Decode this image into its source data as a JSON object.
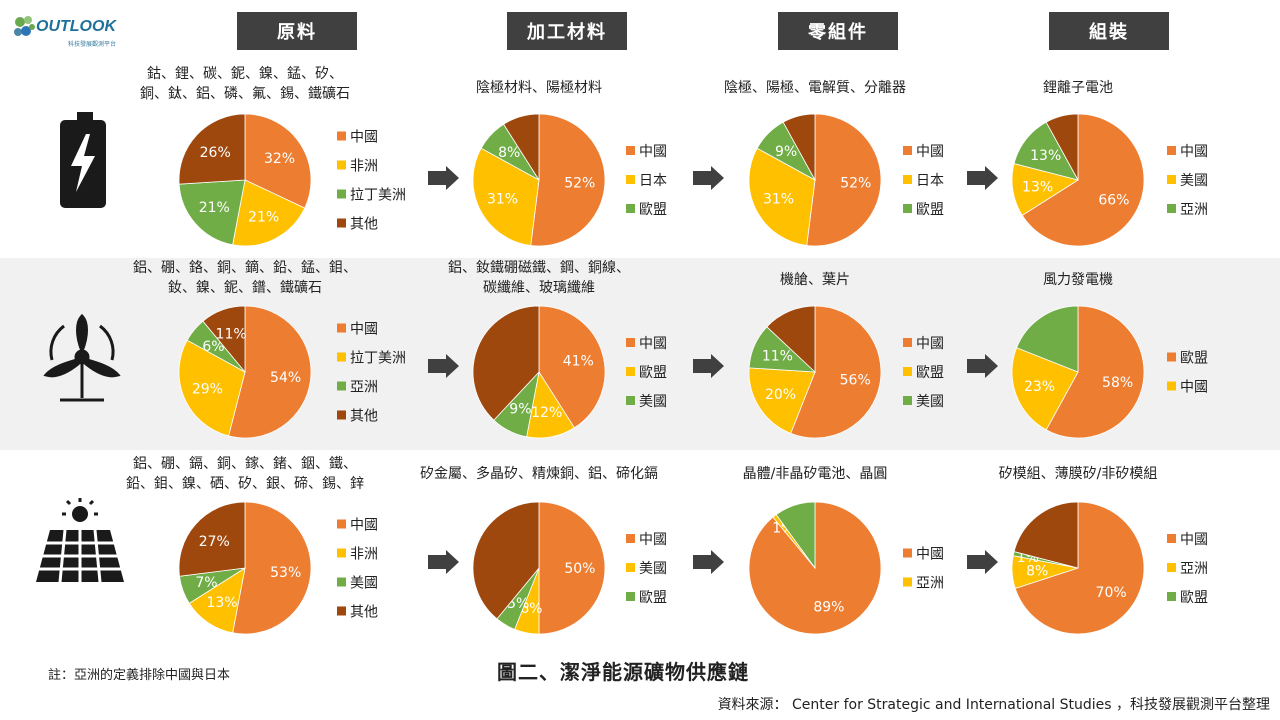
{
  "header": {
    "logo_text": "OUTLOOK",
    "logo_sub": "科技發展觀測平台",
    "stages": [
      "原料",
      "加工材料",
      "零組件",
      "組裝"
    ]
  },
  "colors": {
    "orange": "#ed7d31",
    "yellow": "#ffc000",
    "green": "#70ad47",
    "brown": "#9e480e",
    "header_bg": "#404040",
    "arrow": "#404040"
  },
  "icons": [
    "battery-icon",
    "wind-turbine-icon",
    "solar-panel-icon"
  ],
  "chart_data": [
    {
      "type": "pie",
      "row": 0,
      "col": 0,
      "caption": [
        "鈷、鋰、碳、鈮、鎳、錳、矽、",
        "銅、鈦、鋁、磷、氟、錫、鐵礦石"
      ],
      "slices": [
        {
          "name": "中國",
          "value": 32,
          "color": "#ed7d31",
          "label": "32%"
        },
        {
          "name": "非洲",
          "value": 21,
          "color": "#ffc000",
          "label": "21%"
        },
        {
          "name": "拉丁美洲",
          "value": 21,
          "color": "#70ad47",
          "label": "21%"
        },
        {
          "name": "其他",
          "value": 26,
          "color": "#9e480e",
          "label": "26%"
        }
      ],
      "legend": [
        "中國",
        "非洲",
        "拉丁美洲",
        "其他"
      ]
    },
    {
      "type": "pie",
      "row": 0,
      "col": 1,
      "caption": [
        "陰極材料、陽極材料"
      ],
      "slices": [
        {
          "name": "中國",
          "value": 52,
          "color": "#ed7d31",
          "label": "52%"
        },
        {
          "name": "日本",
          "value": 31,
          "color": "#ffc000",
          "label": "31%"
        },
        {
          "name": "歐盟",
          "value": 8,
          "color": "#70ad47",
          "label": "8%"
        },
        {
          "name": "",
          "value": 9,
          "color": "#9e480e",
          "label": ""
        }
      ],
      "legend": [
        "中國",
        "日本",
        "歐盟"
      ]
    },
    {
      "type": "pie",
      "row": 0,
      "col": 2,
      "caption": [
        "陰極、陽極、電解質、分離器"
      ],
      "slices": [
        {
          "name": "中國",
          "value": 52,
          "color": "#ed7d31",
          "label": "52%"
        },
        {
          "name": "日本",
          "value": 31,
          "color": "#ffc000",
          "label": "31%"
        },
        {
          "name": "歐盟",
          "value": 9,
          "color": "#70ad47",
          "label": "9%"
        },
        {
          "name": "",
          "value": 8,
          "color": "#9e480e",
          "label": ""
        }
      ],
      "legend": [
        "中國",
        "日本",
        "歐盟"
      ]
    },
    {
      "type": "pie",
      "row": 0,
      "col": 3,
      "caption": [
        "鋰離子電池"
      ],
      "slices": [
        {
          "name": "中國",
          "value": 66,
          "color": "#ed7d31",
          "label": "66%"
        },
        {
          "name": "美國",
          "value": 13,
          "color": "#ffc000",
          "label": "13%"
        },
        {
          "name": "亞洲",
          "value": 13,
          "color": "#70ad47",
          "label": "13%"
        },
        {
          "name": "",
          "value": 8,
          "color": "#9e480e",
          "label": ""
        }
      ],
      "legend": [
        "中國",
        "美國",
        "亞洲"
      ]
    },
    {
      "type": "pie",
      "row": 1,
      "col": 0,
      "caption": [
        "鋁、硼、鉻、銅、鏑、鉛、錳、鉬、",
        "釹、鎳、鈮、鐠、鐵礦石"
      ],
      "slices": [
        {
          "name": "中國",
          "value": 54,
          "color": "#ed7d31",
          "label": "54%"
        },
        {
          "name": "拉丁美洲",
          "value": 29,
          "color": "#ffc000",
          "label": "29%"
        },
        {
          "name": "亞洲",
          "value": 6,
          "color": "#70ad47",
          "label": "6%"
        },
        {
          "name": "其他",
          "value": 11,
          "color": "#9e480e",
          "label": "11%"
        }
      ],
      "legend": [
        "中國",
        "拉丁美洲",
        "亞洲",
        "其他"
      ]
    },
    {
      "type": "pie",
      "row": 1,
      "col": 1,
      "caption": [
        "鋁、釹鐵硼磁鐵、鋼、銅線、",
        "碳纖維、玻璃纖維"
      ],
      "slices": [
        {
          "name": "中國",
          "value": 41,
          "color": "#ed7d31",
          "label": "41%"
        },
        {
          "name": "歐盟",
          "value": 12,
          "color": "#ffc000",
          "label": "12%"
        },
        {
          "name": "美國",
          "value": 9,
          "color": "#70ad47",
          "label": "9%"
        },
        {
          "name": "",
          "value": 38,
          "color": "#9e480e",
          "label": ""
        }
      ],
      "legend": [
        "中國",
        "歐盟",
        "美國"
      ]
    },
    {
      "type": "pie",
      "row": 1,
      "col": 2,
      "caption": [
        "機艙、葉片"
      ],
      "slices": [
        {
          "name": "中國",
          "value": 56,
          "color": "#ed7d31",
          "label": "56%"
        },
        {
          "name": "歐盟",
          "value": 20,
          "color": "#ffc000",
          "label": "20%"
        },
        {
          "name": "美國",
          "value": 11,
          "color": "#70ad47",
          "label": "11%"
        },
        {
          "name": "",
          "value": 13,
          "color": "#9e480e",
          "label": ""
        }
      ],
      "legend": [
        "中國",
        "歐盟",
        "美國"
      ]
    },
    {
      "type": "pie",
      "row": 1,
      "col": 3,
      "caption": [
        "風力發電機"
      ],
      "slices": [
        {
          "name": "歐盟",
          "value": 58,
          "color": "#ed7d31",
          "label": "58%"
        },
        {
          "name": "中國",
          "value": 23,
          "color": "#ffc000",
          "label": "23%"
        },
        {
          "name": "",
          "value": 19,
          "color": "#70ad47",
          "label": ""
        }
      ],
      "legend": [
        "歐盟",
        "中國"
      ]
    },
    {
      "type": "pie",
      "row": 2,
      "col": 0,
      "caption": [
        "鋁、硼、鎘、銅、鎵、鍺、銦、鐵、",
        "鉛、鉬、鎳、硒、矽、銀、碲、錫、鋅"
      ],
      "slices": [
        {
          "name": "中國",
          "value": 53,
          "color": "#ed7d31",
          "label": "53%"
        },
        {
          "name": "非洲",
          "value": 13,
          "color": "#ffc000",
          "label": "13%"
        },
        {
          "name": "美國",
          "value": 7,
          "color": "#70ad47",
          "label": "7%"
        },
        {
          "name": "其他",
          "value": 27,
          "color": "#9e480e",
          "label": "27%"
        }
      ],
      "legend": [
        "中國",
        "非洲",
        "美國",
        "其他"
      ]
    },
    {
      "type": "pie",
      "row": 2,
      "col": 1,
      "caption": [
        "矽金屬、多晶矽、精煉銅、鋁、碲化鎘"
      ],
      "slices": [
        {
          "name": "中國",
          "value": 50,
          "color": "#ed7d31",
          "label": "50%"
        },
        {
          "name": "美國",
          "value": 6,
          "color": "#ffc000",
          "label": "6%"
        },
        {
          "name": "歐盟",
          "value": 5,
          "color": "#70ad47",
          "label": "5%"
        },
        {
          "name": "",
          "value": 39,
          "color": "#9e480e",
          "label": ""
        }
      ],
      "legend": [
        "中國",
        "美國",
        "歐盟"
      ]
    },
    {
      "type": "pie",
      "row": 2,
      "col": 2,
      "caption": [
        "晶體/非晶矽電池、晶圓"
      ],
      "slices": [
        {
          "name": "中國",
          "value": 89,
          "color": "#ed7d31",
          "label": "89%"
        },
        {
          "name": "亞洲",
          "value": 1,
          "color": "#ffc000",
          "label": "1%"
        },
        {
          "name": "",
          "value": 10,
          "color": "#70ad47",
          "label": ""
        }
      ],
      "legend": [
        "中國",
        "亞洲"
      ]
    },
    {
      "type": "pie",
      "row": 2,
      "col": 3,
      "caption": [
        "矽模組、薄膜矽/非矽模組"
      ],
      "slices": [
        {
          "name": "中國",
          "value": 70,
          "color": "#ed7d31",
          "label": "70%"
        },
        {
          "name": "亞洲",
          "value": 8,
          "color": "#ffc000",
          "label": "8%"
        },
        {
          "name": "歐盟",
          "value": 1,
          "color": "#70ad47",
          "label": "1%"
        },
        {
          "name": "",
          "value": 21,
          "color": "#9e480e",
          "label": ""
        }
      ],
      "legend": [
        "中國",
        "亞洲",
        "歐盟"
      ]
    }
  ],
  "footer": {
    "note": "註：亞洲的定義排除中國與日本",
    "title": "圖二、潔淨能源礦物供應鏈",
    "source": "資料來源： Center for Strategic and International Studies ，科技發展觀測平台整理"
  }
}
